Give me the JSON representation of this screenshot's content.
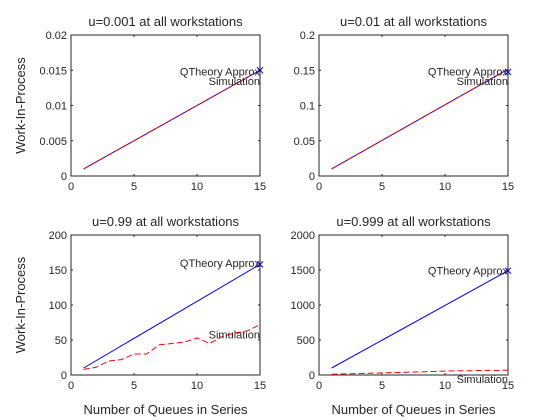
{
  "chart_data": [
    {
      "type": "line",
      "title": "u=0.001 at all workstations",
      "xlabel": "",
      "ylabel": "Work-In-Process",
      "xlim": [
        0,
        15
      ],
      "ylim": [
        0,
        0.02
      ],
      "xticks": [
        0,
        5,
        10,
        15
      ],
      "xtick_labels": [
        "0",
        "5",
        "10",
        "15"
      ],
      "yticks": [
        0,
        0.005,
        0.01,
        0.015,
        0.02
      ],
      "ytick_labels": [
        "0",
        "0.005",
        "0.01",
        "0.015",
        "0.02"
      ],
      "grid": false,
      "series": [
        {
          "name": "QTheory Approx",
          "color": "#0000ff",
          "style": "solid",
          "x": [
            1,
            15
          ],
          "y": [
            0.001,
            0.015
          ]
        },
        {
          "name": "Simulation",
          "color": "#ff0000",
          "style": "dashed",
          "x": [
            1,
            2,
            3,
            4,
            5,
            6,
            7,
            8,
            9,
            10,
            11,
            12,
            13,
            14,
            15
          ],
          "y": [
            0.001,
            0.002,
            0.003,
            0.004,
            0.005,
            0.006,
            0.007,
            0.008,
            0.009,
            0.01,
            0.011,
            0.012,
            0.013,
            0.014,
            0.015
          ]
        }
      ],
      "marker": {
        "x": 15,
        "y": 0.015
      },
      "annotations": [
        {
          "text": "QTheory Approx",
          "x": 15,
          "y": 0.0148
        },
        {
          "text": "Simulation",
          "x": 15,
          "y": 0.0135
        }
      ]
    },
    {
      "type": "line",
      "title": "u=0.01 at all workstations",
      "xlabel": "",
      "ylabel": "",
      "xlim": [
        0,
        15
      ],
      "ylim": [
        0,
        0.2
      ],
      "xticks": [
        0,
        5,
        10,
        15
      ],
      "xtick_labels": [
        "0",
        "5",
        "10",
        "15"
      ],
      "yticks": [
        0,
        0.05,
        0.1,
        0.15,
        0.2
      ],
      "ytick_labels": [
        "0",
        "0.05",
        "0.1",
        "0.15",
        "0.2"
      ],
      "grid": false,
      "series": [
        {
          "name": "QTheory Approx",
          "color": "#0000ff",
          "style": "solid",
          "x": [
            1,
            15
          ],
          "y": [
            0.0101,
            0.1515
          ]
        },
        {
          "name": "Simulation",
          "color": "#ff0000",
          "style": "dashed",
          "x": [
            1,
            2,
            3,
            4,
            5,
            6,
            7,
            8,
            9,
            10,
            11,
            12,
            13,
            14,
            15
          ],
          "y": [
            0.0101,
            0.0202,
            0.0303,
            0.0404,
            0.0505,
            0.0606,
            0.0707,
            0.0808,
            0.0909,
            0.101,
            0.1111,
            0.1212,
            0.1313,
            0.1414,
            0.1515
          ]
        }
      ],
      "marker": {
        "x": 15,
        "y": 0.1475
      },
      "annotations": [
        {
          "text": "QTheory Approx",
          "x": 15,
          "y": 0.148
        },
        {
          "text": "Simulation",
          "x": 15,
          "y": 0.135
        }
      ]
    },
    {
      "type": "line",
      "title": "u=0.99 at all workstations",
      "xlabel": "Number of Queues in Series",
      "ylabel": "Work-In-Process",
      "xlim": [
        0,
        15
      ],
      "ylim": [
        0,
        200
      ],
      "xticks": [
        0,
        5,
        10,
        15
      ],
      "xtick_labels": [
        "0",
        "5",
        "10",
        "15"
      ],
      "yticks": [
        0,
        50,
        100,
        150,
        200
      ],
      "ytick_labels": [
        "0",
        "50",
        "100",
        "150",
        "200"
      ],
      "grid": false,
      "series": [
        {
          "name": "QTheory Approx",
          "color": "#0000ff",
          "style": "solid",
          "x": [
            1,
            15
          ],
          "y": [
            10,
            158
          ]
        },
        {
          "name": "Simulation",
          "color": "#ff0000",
          "style": "dashed",
          "x": [
            1,
            2,
            3,
            4,
            5,
            6,
            7,
            8,
            9,
            10,
            11,
            12,
            13,
            14,
            15
          ],
          "y": [
            8,
            11,
            20,
            22,
            30,
            30,
            43,
            45,
            47,
            53,
            45,
            55,
            60,
            63,
            72
          ]
        }
      ],
      "marker": {
        "x": 15,
        "y": 158
      },
      "annotations": [
        {
          "text": "QTheory Approx",
          "x": 15,
          "y": 160
        },
        {
          "text": "Simulation",
          "x": 15,
          "y": 58
        }
      ]
    },
    {
      "type": "line",
      "title": "u=0.999 at all workstations",
      "xlabel": "Number of Queues in Series",
      "ylabel": "",
      "xlim": [
        0,
        15
      ],
      "ylim": [
        0,
        2000
      ],
      "xticks": [
        0,
        5,
        10,
        15
      ],
      "xtick_labels": [
        "0",
        "5",
        "10",
        "15"
      ],
      "yticks": [
        0,
        500,
        1000,
        1500,
        2000
      ],
      "ytick_labels": [
        "0",
        "500",
        "1000",
        "1500",
        "2000"
      ],
      "grid": false,
      "series": [
        {
          "name": "QTheory Approx",
          "color": "#0000ff",
          "style": "solid",
          "x": [
            1,
            15
          ],
          "y": [
            100,
            1490
          ]
        },
        {
          "name": "Simulation",
          "color": "#ff0000",
          "style": "dashed",
          "x": [
            1,
            2,
            3,
            4,
            5,
            6,
            7,
            8,
            9,
            10,
            11,
            12,
            13,
            14,
            15
          ],
          "y": [
            10,
            15,
            20,
            25,
            30,
            35,
            40,
            45,
            50,
            55,
            60,
            60,
            65,
            65,
            68
          ]
        }
      ],
      "marker": {
        "x": 15,
        "y": 1490
      },
      "annotations": [
        {
          "text": "QTheory Approx",
          "x": 15,
          "y": 1490
        },
        {
          "text": "Simulation",
          "x": 15,
          "y": -60
        }
      ]
    }
  ]
}
